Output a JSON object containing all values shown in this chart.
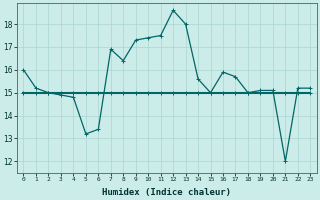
{
  "xlabel": "Humidex (Indice chaleur)",
  "ylabel": "",
  "background_color": "#ccecea",
  "grid_color": "#afd8d4",
  "line_color": "#006666",
  "xlim": [
    -0.5,
    23.5
  ],
  "ylim": [
    11.5,
    18.9
  ],
  "yticks": [
    12,
    13,
    14,
    15,
    16,
    17,
    18
  ],
  "xticks": [
    0,
    1,
    2,
    3,
    4,
    5,
    6,
    7,
    8,
    9,
    10,
    11,
    12,
    13,
    14,
    15,
    16,
    17,
    18,
    19,
    20,
    21,
    22,
    23
  ],
  "humidex_y": [
    16.0,
    15.2,
    15.0,
    14.9,
    14.8,
    13.2,
    13.4,
    16.9,
    16.4,
    17.3,
    17.4,
    17.5,
    18.6,
    18.0,
    15.6,
    15.0,
    15.9,
    15.7,
    15.0,
    15.1,
    15.1,
    12.0,
    15.2,
    15.2
  ],
  "flat_y": [
    15.0,
    15.0,
    15.0,
    15.0,
    15.0,
    15.0,
    15.0,
    15.0,
    15.0,
    15.0,
    15.0,
    15.0,
    15.0,
    15.0,
    15.0,
    15.0,
    15.0,
    15.0,
    15.0,
    15.0,
    15.0,
    15.0,
    15.0,
    15.0
  ],
  "ylabel_fontsize": 6,
  "xlabel_fontsize": 6.5,
  "xtick_fontsize": 4.5,
  "ytick_fontsize": 5.5
}
